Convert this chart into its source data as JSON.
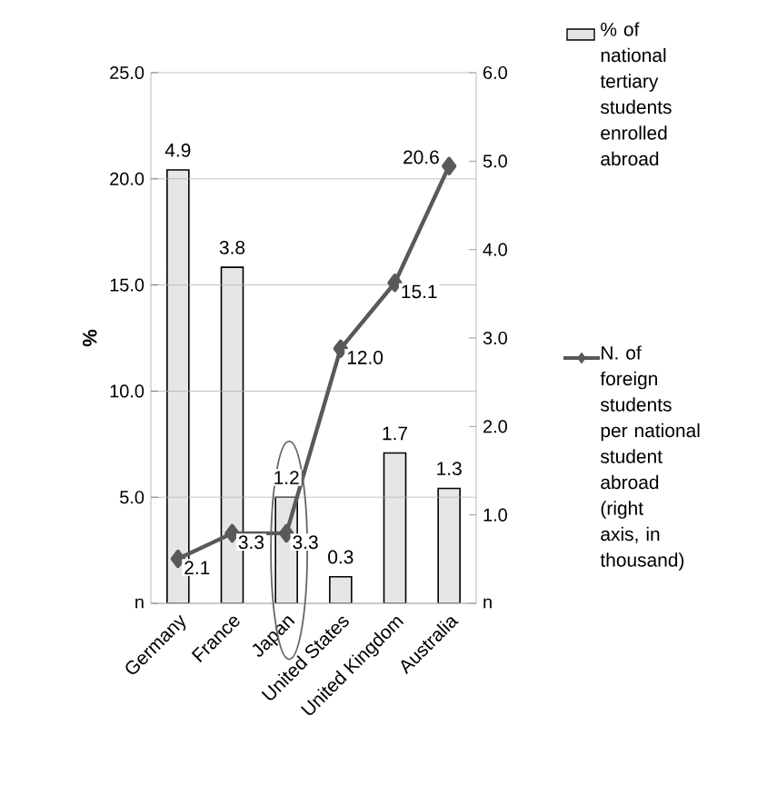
{
  "chart_data": {
    "type": "bar",
    "ylabel": "%",
    "categories": [
      "Germany",
      "France",
      "Japan",
      "United States",
      "United Kingdom",
      "Australia"
    ],
    "series": [
      {
        "name": "% of national tertiary students enrolled abroad",
        "axis": "y2",
        "color": "#e6e6e6",
        "values": [
          4.9,
          3.8,
          1.2,
          0.3,
          1.7,
          1.3
        ],
        "value_labels": [
          "4.9",
          "3.8",
          "1.2",
          "0.3",
          "1.7",
          "1.3"
        ]
      },
      {
        "name": "N. of foreign students per national student abroad (right axis, in thousand)",
        "type": "line",
        "axis": "y",
        "color": "#595959",
        "marker": "diamond",
        "values": [
          2.1,
          3.3,
          3.3,
          12.0,
          15.1,
          20.6
        ],
        "value_labels": [
          "2.1",
          "3.3",
          "3.3",
          "12.0",
          "15.1",
          "20.6"
        ]
      }
    ],
    "ylim": [
      0,
      25
    ],
    "yticks": [
      {
        "value": 0,
        "label": "n"
      },
      {
        "value": 5,
        "label": "5.0"
      },
      {
        "value": 10,
        "label": "10.0"
      },
      {
        "value": 15,
        "label": "15.0"
      },
      {
        "value": 20,
        "label": "20.0"
      },
      {
        "value": 25,
        "label": "25.0"
      }
    ],
    "y2lim": [
      0,
      6
    ],
    "y2ticks": [
      {
        "value": 0,
        "label": "n"
      },
      {
        "value": 1,
        "label": "1.0"
      },
      {
        "value": 2,
        "label": "2.0"
      },
      {
        "value": 3,
        "label": "3.0"
      },
      {
        "value": 4,
        "label": "4.0"
      },
      {
        "value": 5,
        "label": "5.0"
      },
      {
        "value": 6,
        "label": "6.0"
      }
    ],
    "grid": "y",
    "legend": "right"
  }
}
